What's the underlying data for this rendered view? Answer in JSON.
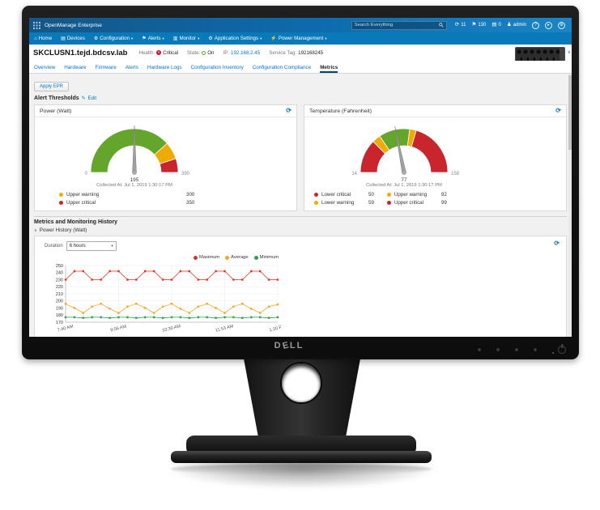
{
  "monitor": {
    "brand": "DELL"
  },
  "topbar": {
    "brand": "OpenManage Enterprise",
    "search": {
      "placeholder": "Search Everything"
    },
    "badges": [
      {
        "name": "jobs",
        "glyph": "⟳",
        "count": "11"
      },
      {
        "name": "alerts",
        "glyph": "⚑",
        "count": "130"
      },
      {
        "name": "updates",
        "glyph": "▤",
        "count": "0"
      }
    ],
    "user": {
      "glyph": "♟",
      "label": "admin"
    },
    "menu_icons": [
      {
        "name": "help",
        "glyph": "?"
      },
      {
        "name": "launch",
        "glyph": "▸"
      },
      {
        "name": "settings",
        "glyph": "⚙"
      }
    ]
  },
  "nav": {
    "items": [
      {
        "label": "Home",
        "icon": "home",
        "glyph": "⌂",
        "caret": false
      },
      {
        "label": "Devices",
        "icon": "devices",
        "glyph": "▤",
        "caret": false
      },
      {
        "label": "Configuration",
        "icon": "configuration",
        "glyph": "⚙",
        "caret": true
      },
      {
        "label": "Alerts",
        "icon": "alerts",
        "glyph": "⚑",
        "caret": true
      },
      {
        "label": "Monitor",
        "icon": "monitor",
        "glyph": "▥",
        "caret": true
      },
      {
        "label": "Application Settings",
        "icon": "application-settings",
        "glyph": "⚙",
        "caret": true
      },
      {
        "label": "Power Management",
        "icon": "power-management",
        "glyph": "⚡",
        "caret": true
      }
    ]
  },
  "device": {
    "name": "SKCLUSN1.tejd.bdcsv.lab",
    "health_label": "Health:",
    "health": "Critical",
    "state_label": "State:",
    "state": "On",
    "ip_label": "IP:",
    "ip": "192.168.2.45",
    "service_tag_label": "Service Tag:",
    "service_tag": "192168245"
  },
  "tabs": {
    "items": [
      "Overview",
      "Hardware",
      "Firmware",
      "Alerts",
      "Hardware Logs",
      "Configuration Inventory",
      "Configuration Compliance",
      "Metrics"
    ],
    "active": "Metrics"
  },
  "actions": {
    "apply_epr": "Apply EPR"
  },
  "alert_thresholds": {
    "title": "Alert Thresholds",
    "edit_label": "Edit"
  },
  "history": {
    "section_title": "Metrics and Monitoring History",
    "duration_label": "Duration",
    "duration_value": "6 hours"
  },
  "colors": {
    "accent": "#0076ce",
    "critical": "#c9252d",
    "warning": "#f0ab00",
    "ok": "#64a62b"
  },
  "chart_data": [
    {
      "type": "gauge",
      "title": "Power (Watt)",
      "unit": "Watt",
      "min": 0,
      "max": 390,
      "value": 195,
      "collected_label": "Collected At:",
      "collected_at": "Jul 1, 2019 1:30:17 PM",
      "segments": [
        {
          "from": 0,
          "to": 300,
          "color": "#64a62b"
        },
        {
          "from": 300,
          "to": 350,
          "color": "#f0ab00"
        },
        {
          "from": 350,
          "to": 390,
          "color": "#c9252d"
        }
      ],
      "thresholds": [
        {
          "label": "Upper warning",
          "value": 300,
          "color": "#f0ab00"
        },
        {
          "label": "Upper critical",
          "value": 350,
          "color": "#c9252d"
        }
      ],
      "layout": "single"
    },
    {
      "type": "gauge",
      "title": "Temperature (Fahrenheit)",
      "unit": "Fahrenheit",
      "min": 14,
      "max": 158,
      "value": 77,
      "collected_label": "Collected At:",
      "collected_at": "Jul 1, 2019 1:30:17 PM",
      "segments": [
        {
          "from": 14,
          "to": 50,
          "color": "#c9252d"
        },
        {
          "from": 50,
          "to": 59,
          "color": "#f0ab00"
        },
        {
          "from": 59,
          "to": 92,
          "color": "#64a62b"
        },
        {
          "from": 92,
          "to": 99,
          "color": "#f0ab00"
        },
        {
          "from": 99,
          "to": 158,
          "color": "#c9252d"
        }
      ],
      "thresholds": [
        {
          "label": "Lower critical",
          "value": 50,
          "color": "#c9252d"
        },
        {
          "label": "Upper warning",
          "value": 92,
          "color": "#f0ab00"
        },
        {
          "label": "Lower warning",
          "value": 59,
          "color": "#f0ab00"
        },
        {
          "label": "Upper critical",
          "value": 99,
          "color": "#c9252d"
        }
      ],
      "layout": "two-col"
    },
    {
      "type": "line",
      "title": "Power History (Watt)",
      "ylim": [
        170,
        250
      ],
      "yticks": [
        170,
        180,
        190,
        200,
        210,
        220,
        230,
        240,
        250
      ],
      "x_tick_labels": [
        "7:40 AM",
        "9:06 AM",
        "10:30 AM",
        "11:53 AM",
        "1:20 PM"
      ],
      "x_tick_indices": [
        0,
        6,
        12,
        18,
        24
      ],
      "grid": true,
      "legend_position": "top-right",
      "series": [
        {
          "name": "Maximum",
          "color": "#e03226",
          "values": [
            230,
            242,
            242,
            230,
            230,
            242,
            242,
            230,
            230,
            242,
            242,
            230,
            230,
            242,
            242,
            230,
            230,
            242,
            242,
            230,
            230,
            242,
            242,
            230,
            230
          ]
        },
        {
          "name": "Average",
          "color": "#f5a623",
          "values": [
            196,
            190,
            183,
            192,
            196,
            189,
            183,
            192,
            196,
            190,
            183,
            192,
            196,
            189,
            183,
            192,
            196,
            190,
            183,
            192,
            196,
            189,
            183,
            192,
            195
          ]
        },
        {
          "name": "Minimum",
          "color": "#2aa148",
          "values": [
            177,
            177,
            176,
            177,
            177,
            176,
            177,
            177,
            176,
            177,
            177,
            176,
            177,
            177,
            176,
            177,
            177,
            176,
            177,
            177,
            176,
            177,
            177,
            176,
            177
          ]
        }
      ]
    }
  ]
}
